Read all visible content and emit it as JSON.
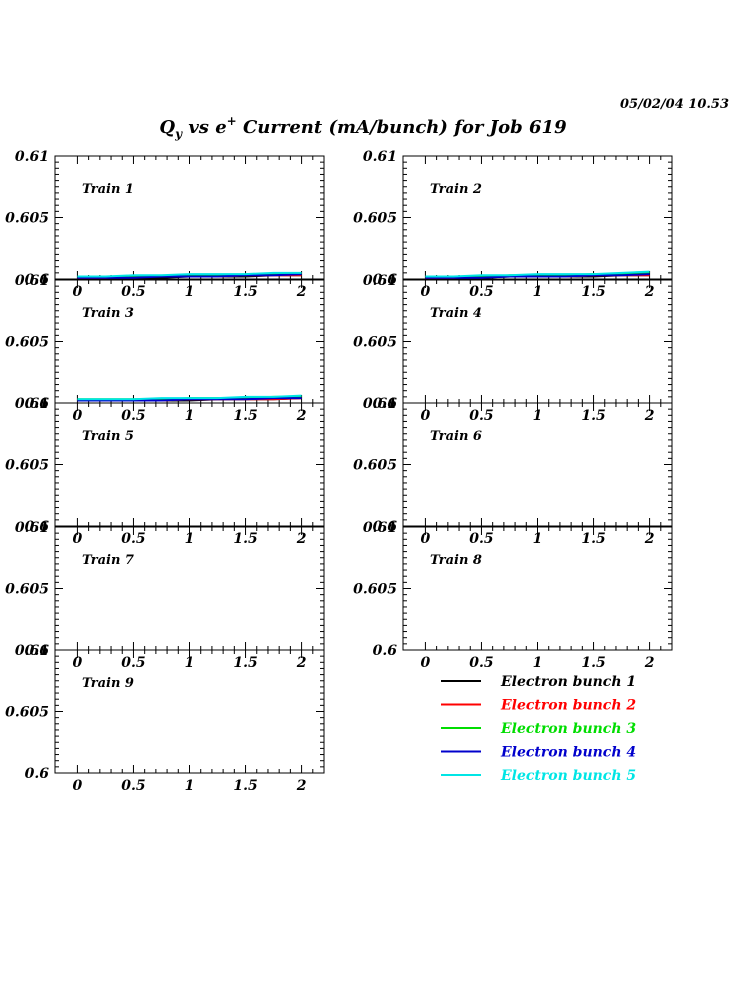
{
  "timestamp": "05/02/04  10.53",
  "title": {
    "q": "Q",
    "q_sub": "y",
    "vs": " vs e",
    "e_sup": "+",
    "rest": " Current (mA/bunch) for Job 619"
  },
  "chart_data": {
    "type": "line",
    "xlim": [
      -0.2,
      2.2
    ],
    "ylim": [
      0.6,
      0.61
    ],
    "xticks": [
      "0",
      "0.5",
      "1",
      "1.5",
      "2"
    ],
    "yticks": [
      "0.6",
      "0.605",
      "0.61"
    ],
    "x": [
      0,
      0.25,
      0.5,
      0.75,
      1,
      1.25,
      1.5,
      1.75,
      2
    ],
    "series_meta": [
      {
        "name": "Electron bunch 1",
        "color": "#000000"
      },
      {
        "name": "Electron bunch 2",
        "color": "#ff0000"
      },
      {
        "name": "Electron bunch 3",
        "color": "#00dd00"
      },
      {
        "name": "Electron bunch 4",
        "color": "#0000cc"
      },
      {
        "name": "Electron bunch 5",
        "color": "#00e5e5"
      }
    ],
    "panels": [
      {
        "label": "Train 1",
        "series": [
          [
            0.6001,
            0.6001,
            0.6001,
            0.6001,
            0.6002,
            0.6002,
            0.6002,
            0.6003,
            0.6003
          ],
          [
            0.6001,
            0.6001,
            0.6002,
            0.6002,
            0.6002,
            0.6002,
            0.6003,
            0.6003,
            0.6003
          ],
          [
            0.6002,
            0.6002,
            0.6002,
            0.6002,
            0.6003,
            0.6003,
            0.6003,
            0.6004,
            0.6004
          ],
          [
            0.6001,
            0.6001,
            0.6001,
            0.6002,
            0.6002,
            0.6002,
            0.6003,
            0.6003,
            0.6004
          ],
          [
            0.6002,
            0.6002,
            0.6003,
            0.6003,
            0.6004,
            0.6004,
            0.6004,
            0.6005,
            0.6005
          ]
        ]
      },
      {
        "label": "Train 2",
        "series": [
          [
            0.6001,
            0.6001,
            0.6001,
            0.6002,
            0.6002,
            0.6002,
            0.6002,
            0.6003,
            0.6003
          ],
          [
            0.6001,
            0.6001,
            0.6002,
            0.6002,
            0.6002,
            0.6002,
            0.6003,
            0.6003,
            0.6003
          ],
          [
            0.6002,
            0.6002,
            0.6002,
            0.6003,
            0.6003,
            0.6003,
            0.6004,
            0.6004,
            0.6005
          ],
          [
            0.6001,
            0.6001,
            0.6001,
            0.6002,
            0.6002,
            0.6002,
            0.6003,
            0.6003,
            0.6004
          ],
          [
            0.6002,
            0.6002,
            0.6003,
            0.6003,
            0.6004,
            0.6004,
            0.6004,
            0.6005,
            0.6006
          ]
        ]
      },
      {
        "label": "Train 3",
        "series": [
          [
            0.6002,
            0.6002,
            0.6002,
            0.6002,
            0.6002,
            0.6003,
            0.6003,
            0.6003,
            0.6004
          ],
          [
            0.6002,
            0.6002,
            0.6002,
            0.6002,
            0.6003,
            0.6003,
            0.6003,
            0.6003,
            0.6004
          ],
          [
            0.6003,
            0.6003,
            0.6003,
            0.6003,
            0.6004,
            0.6004,
            0.6004,
            0.6005,
            0.6005
          ],
          [
            0.6002,
            0.6002,
            0.6002,
            0.6002,
            0.6003,
            0.6003,
            0.6003,
            0.6004,
            0.6004
          ],
          [
            0.6003,
            0.6003,
            0.6003,
            0.6004,
            0.6004,
            0.6004,
            0.6005,
            0.6005,
            0.6006
          ]
        ]
      },
      {
        "label": "Train 4",
        "series": []
      },
      {
        "label": "Train 5",
        "series": []
      },
      {
        "label": "Train 6",
        "series": []
      },
      {
        "label": "Train 7",
        "series": []
      },
      {
        "label": "Train 8",
        "series": []
      },
      {
        "label": "Train 9",
        "series": []
      }
    ]
  }
}
